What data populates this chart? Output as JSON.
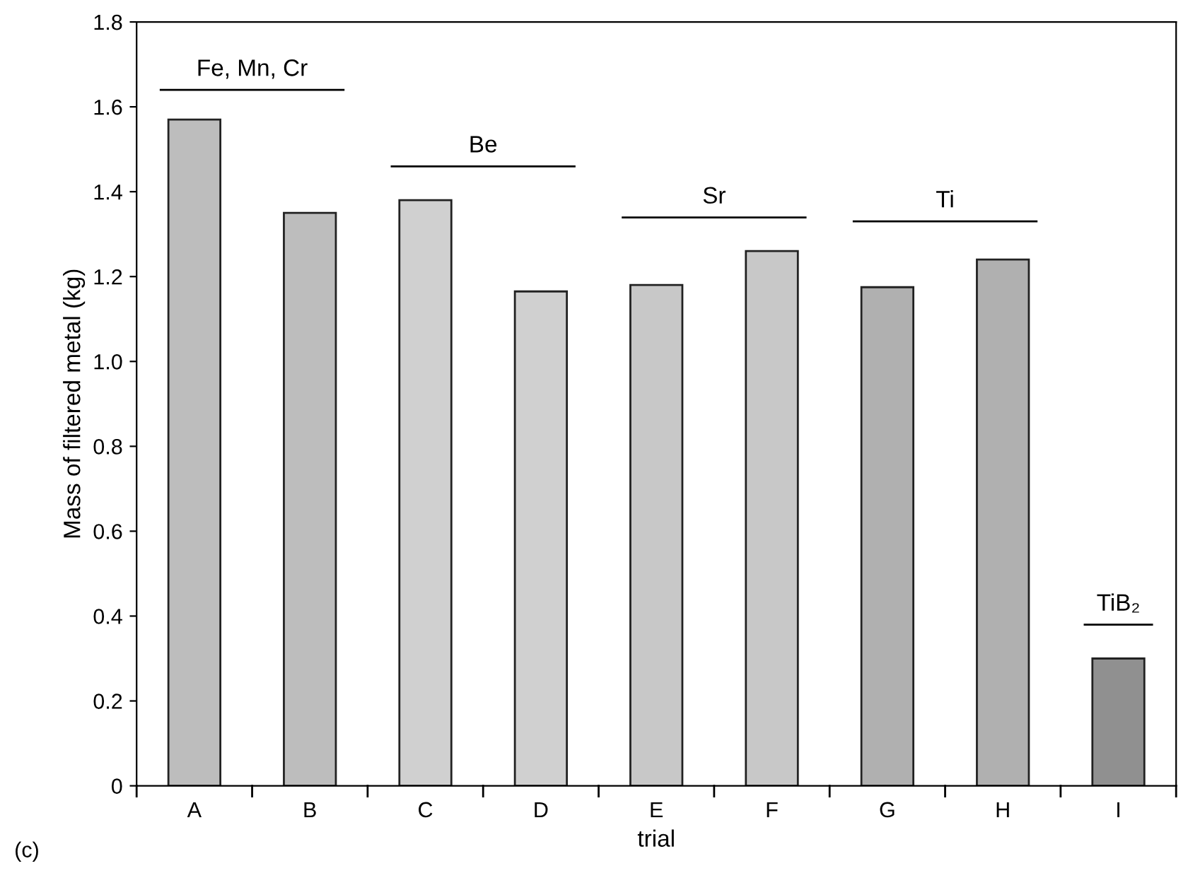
{
  "chart_data": {
    "type": "bar",
    "xlabel": "trial",
    "ylabel": "Mass of filtered metal (kg)",
    "categories": [
      "A",
      "B",
      "C",
      "D",
      "E",
      "F",
      "G",
      "H",
      "I"
    ],
    "values": [
      1.57,
      1.35,
      1.38,
      1.165,
      1.18,
      1.26,
      1.175,
      1.24,
      0.3
    ],
    "colors": [
      "#bdbdbd",
      "#bdbdbd",
      "#d0d0d0",
      "#d0d0d0",
      "#c8c8c8",
      "#c8c8c8",
      "#b0b0b0",
      "#b0b0b0",
      "#909090"
    ],
    "ylim": [
      0,
      1.8
    ],
    "yticks": [
      0,
      0.2,
      0.4,
      0.6,
      0.8,
      {
        "value": 1,
        "label": "1.0"
      },
      1.2,
      1.4,
      1.6,
      1.8
    ],
    "grid": false,
    "legend": false,
    "annotations": [
      "Fe, Mn, Cr",
      "Be",
      "Sr",
      "Ti",
      "TiB₂",
      "(c)"
    ]
  }
}
